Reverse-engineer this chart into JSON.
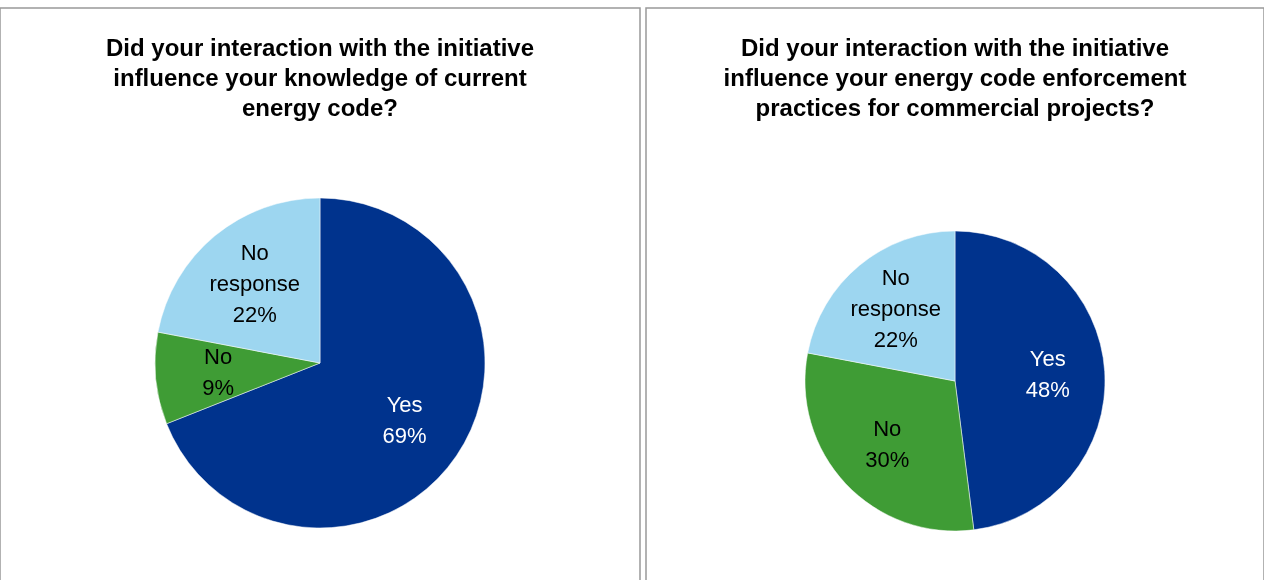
{
  "chart_data": [
    {
      "type": "pie",
      "title": "Did your interaction with the initiative influence your knowledge of current energy code?",
      "categories": [
        "Yes",
        "No",
        "No response"
      ],
      "values": [
        69,
        9,
        22
      ],
      "value_labels": [
        "69%",
        "9%",
        "22%"
      ],
      "colors": [
        "#00338d",
        "#3f9c35",
        "#9dd6f0"
      ]
    },
    {
      "type": "pie",
      "title": "Did your interaction with the initiative influence your energy code enforcement practices for commercial projects?",
      "categories": [
        "Yes",
        "No",
        "No response"
      ],
      "values": [
        48,
        30,
        22
      ],
      "value_labels": [
        "48%",
        "30%",
        "22%"
      ],
      "colors": [
        "#00338d",
        "#3f9c35",
        "#9dd6f0"
      ]
    }
  ]
}
